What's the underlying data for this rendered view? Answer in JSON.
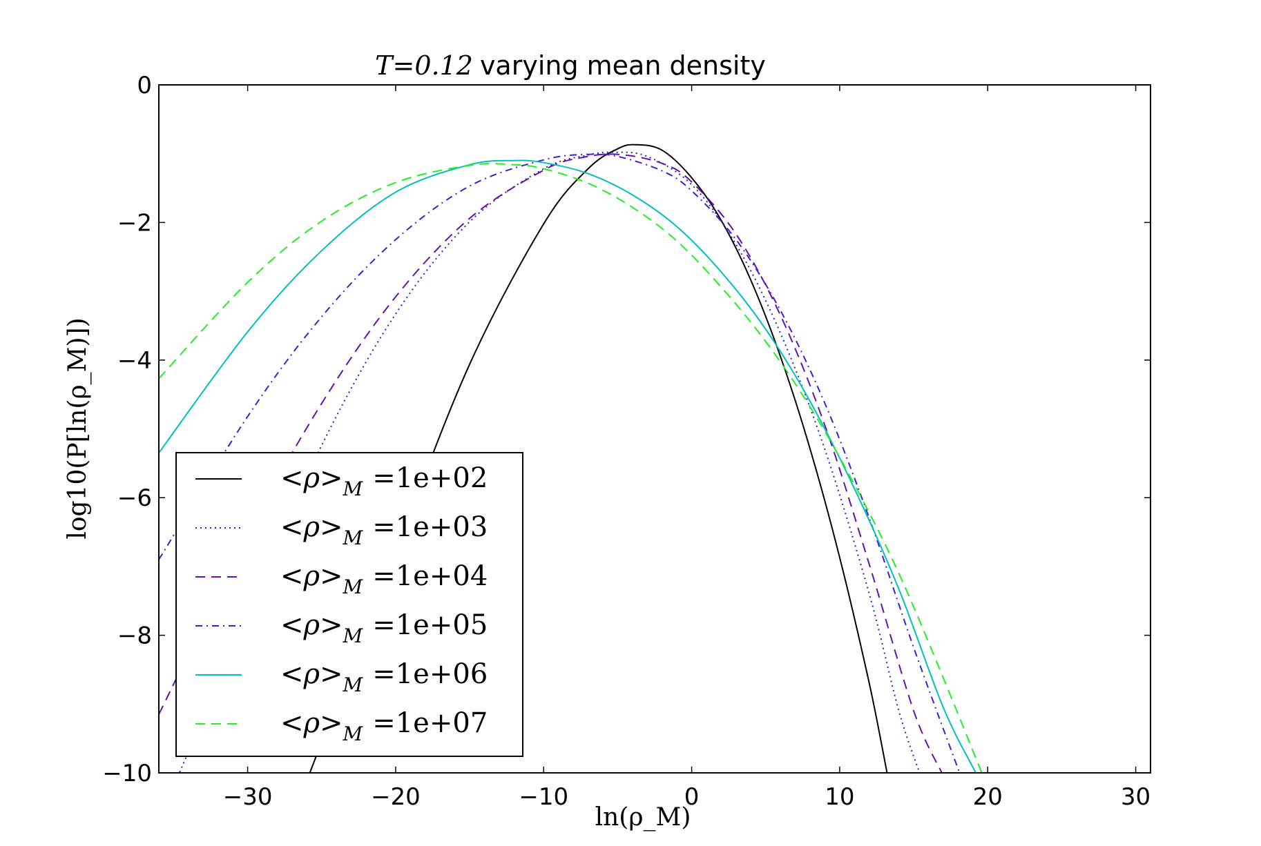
{
  "chart_data": {
    "type": "line",
    "title_math": "T=0.12",
    "title_text": "varying mean density",
    "xlabel": "ln(ρ_M)",
    "ylabel": "log10(P[ln(ρ_M)])",
    "xlim": [
      -36,
      31
    ],
    "ylim": [
      -10,
      0
    ],
    "xticks": [
      -30,
      -20,
      -10,
      0,
      10,
      20,
      30
    ],
    "xtick_labels": [
      "−30",
      "−20",
      "−10",
      "0",
      "10",
      "20",
      "30"
    ],
    "yticks": [
      0,
      -2,
      -4,
      -6,
      -8,
      -10
    ],
    "ytick_labels": [
      "0",
      "−2",
      "−4",
      "−6",
      "−8",
      "−10"
    ],
    "grid": false,
    "legend_position": "lower-left",
    "series": [
      {
        "name": "<ρ>_M =1e+02",
        "legend_left": "<ρ>",
        "legend_sub": "M",
        "legend_right": "=1e+02",
        "color": "#000000",
        "style": "solid",
        "x": [
          -25.8,
          -20,
          -15,
          -10,
          -7,
          -5,
          -3.8,
          -2,
          0,
          2,
          4,
          6,
          8,
          10,
          12,
          13.2
        ],
        "y": [
          -10,
          -6.77,
          -4.06,
          -2.02,
          -1.22,
          -0.93,
          -0.87,
          -0.95,
          -1.35,
          -1.97,
          -2.84,
          -3.95,
          -5.29,
          -6.87,
          -8.7,
          -10
        ]
      },
      {
        "name": "<ρ>_M =1e+03",
        "legend_left": "<ρ>",
        "legend_sub": "M",
        "legend_right": "=1e+03",
        "color": "#2020d0",
        "style": "dotted",
        "x": [
          -36,
          -30,
          -25,
          -20,
          -15,
          -10,
          -7,
          -5.3,
          -3,
          0,
          3,
          6,
          9,
          12,
          14,
          15.4
        ],
        "y": [
          -10.7,
          -7.69,
          -5.24,
          -3.33,
          -1.99,
          -1.22,
          -1.02,
          -0.98,
          -1.04,
          -1.45,
          -2.32,
          -3.61,
          -5.3,
          -7.4,
          -9.1,
          -10
        ]
      },
      {
        "name": "<ρ>_M =1e+04",
        "legend_left": "<ρ>",
        "legend_sub": "M",
        "legend_right": "=1e+04",
        "color": "#6a0dad",
        "style": "dashed",
        "x": [
          -36,
          -30,
          -25,
          -20,
          -15,
          -10,
          -7.5,
          -5,
          -2,
          0,
          3,
          6,
          9,
          12,
          15,
          16.9
        ],
        "y": [
          -9.15,
          -6.54,
          -4.63,
          -3.08,
          -1.94,
          -1.24,
          -1.06,
          -1.01,
          -1.14,
          -1.41,
          -2.17,
          -3.35,
          -4.95,
          -6.97,
          -9.1,
          -10
        ]
      },
      {
        "name": "<ρ>_M =1e+05",
        "legend_left": "<ρ>",
        "legend_sub": "M",
        "legend_right": "=1e+05",
        "color": "#3a1ed8",
        "style": "dashdot",
        "x": [
          -36,
          -30,
          -25,
          -20,
          -15,
          -10,
          -7,
          -5,
          -2,
          0,
          3,
          6,
          9,
          12,
          15,
          18.1
        ],
        "y": [
          -6.9,
          -4.82,
          -3.37,
          -2.25,
          -1.47,
          -1.09,
          -1.01,
          -1.04,
          -1.25,
          -1.54,
          -2.25,
          -3.28,
          -4.63,
          -6.3,
          -8.18,
          -10
        ]
      },
      {
        "name": "<ρ>_M =1e+06",
        "legend_left": "<ρ>",
        "legend_sub": "M",
        "legend_right": "=1e+06",
        "color": "#00bfbf",
        "style": "solid",
        "x": [
          -36,
          -30,
          -25,
          -20,
          -15,
          -12,
          -10,
          -7,
          -4,
          -1,
          2,
          5,
          8,
          11,
          14,
          17,
          19.2
        ],
        "y": [
          -5.35,
          -3.59,
          -2.41,
          -1.56,
          -1.16,
          -1.1,
          -1.13,
          -1.29,
          -1.6,
          -2.06,
          -2.72,
          -3.55,
          -4.6,
          -5.87,
          -7.33,
          -9.05,
          -10
        ]
      },
      {
        "name": "<ρ>_M =1e+07",
        "legend_left": "<ρ>",
        "legend_sub": "M",
        "legend_right": "=1e+07",
        "color": "#22ee22",
        "style": "dashed",
        "x": [
          -36,
          -30,
          -25,
          -20,
          -15,
          -12,
          -10,
          -7,
          -4,
          -1,
          2,
          5,
          8,
          11,
          14,
          17,
          19.6
        ],
        "y": [
          -4.27,
          -2.87,
          -1.98,
          -1.42,
          -1.17,
          -1.16,
          -1.22,
          -1.43,
          -1.78,
          -2.27,
          -2.94,
          -3.73,
          -4.68,
          -5.81,
          -7.1,
          -8.62,
          -10
        ]
      }
    ]
  }
}
